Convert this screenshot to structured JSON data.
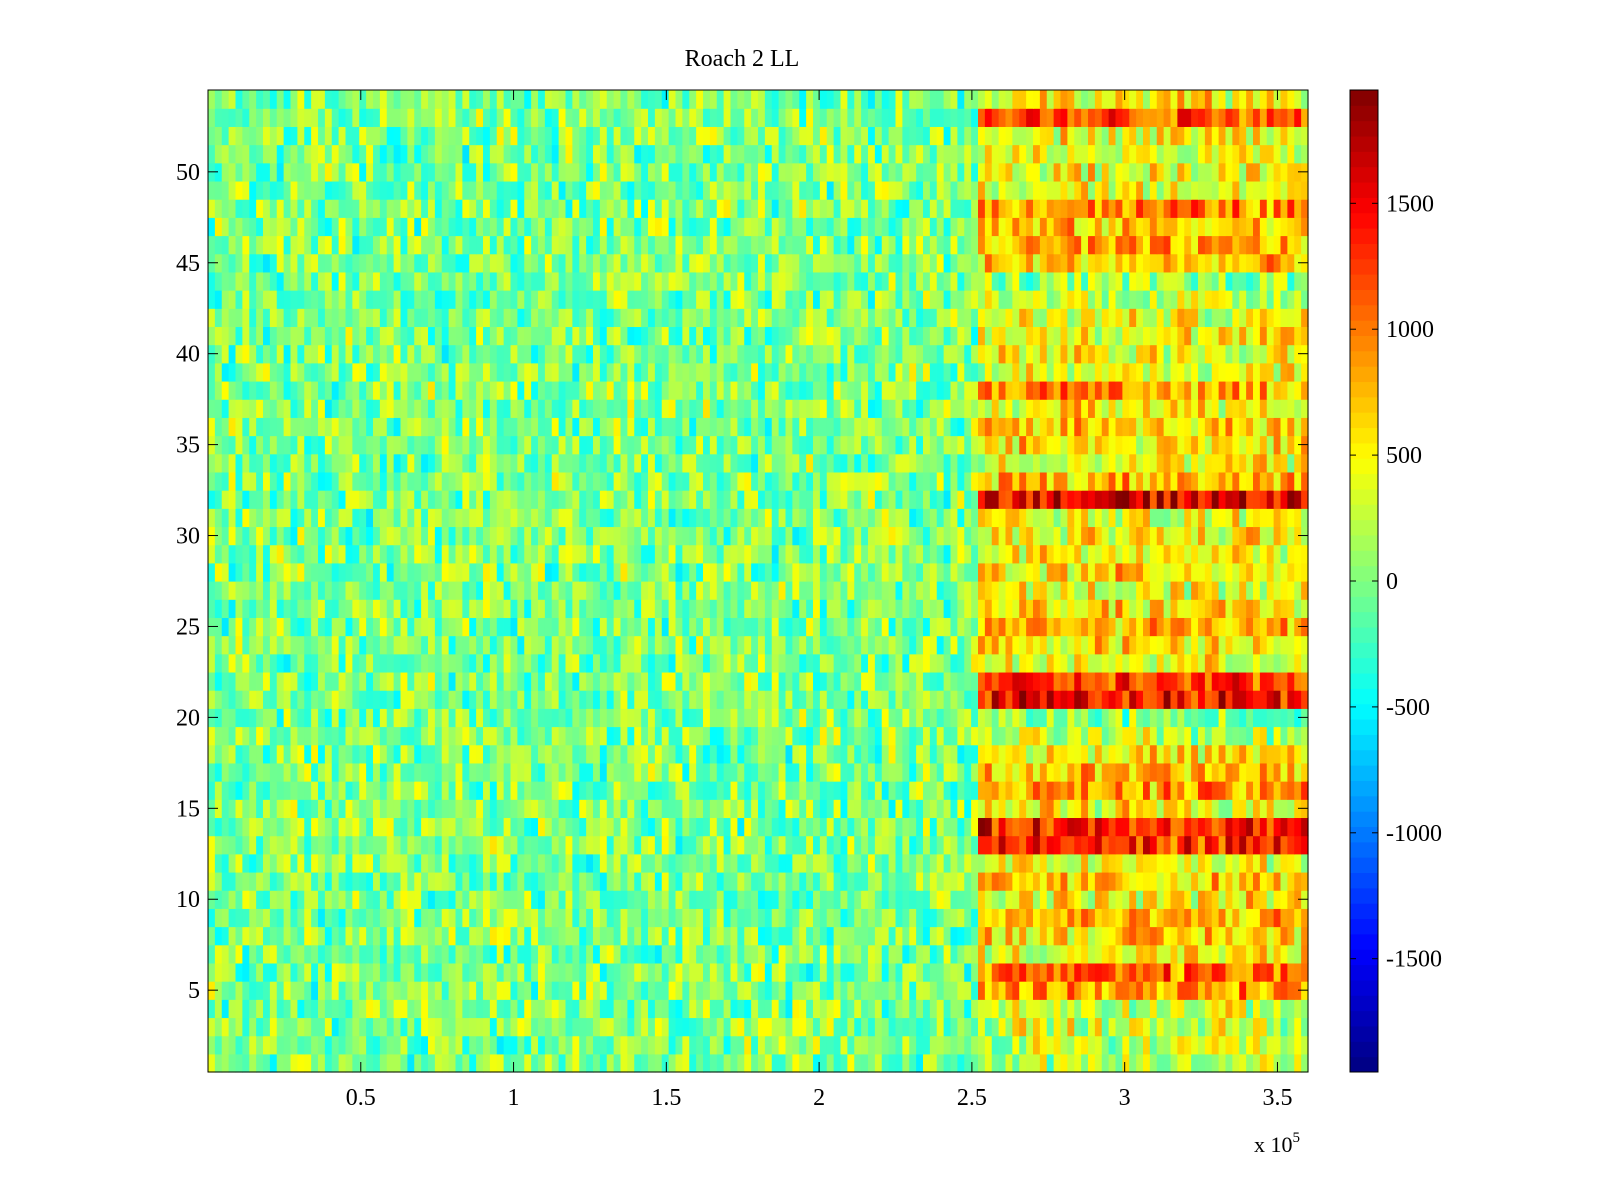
{
  "chart_data": {
    "type": "heatmap",
    "title": "Roach 2 LL",
    "xlabel": "",
    "ylabel": "",
    "x_exponent_label": "x 10",
    "x_exponent_power": "5",
    "xlim": [
      0,
      3.6
    ],
    "ylim": [
      0.5,
      54.5
    ],
    "x_ticks": [
      0.5,
      1,
      1.5,
      2,
      2.5,
      3,
      3.5
    ],
    "x_tick_labels": [
      "0.5",
      "1",
      "1.5",
      "2",
      "2.5",
      "3",
      "3.5"
    ],
    "y_ticks": [
      5,
      10,
      15,
      20,
      25,
      30,
      35,
      40,
      45,
      50
    ],
    "y_tick_labels": [
      "5",
      "10",
      "15",
      "20",
      "25",
      "30",
      "35",
      "40",
      "45",
      "50"
    ],
    "colormap": "jet",
    "clim": [
      -1950,
      1950
    ],
    "colorbar_ticks": [
      -1500,
      -1000,
      -500,
      0,
      500,
      1000,
      1500
    ],
    "colorbar_tick_labels": [
      "-1500",
      "-1000",
      "-500",
      "0",
      "500",
      "1000",
      "1500"
    ],
    "n_rows": 54,
    "transition_x": 2.5,
    "before_transition_mean": 0,
    "row_means_after_transition": [
      250,
      200,
      300,
      300,
      900,
      1050,
      450,
      650,
      750,
      500,
      650,
      400,
      1300,
      1400,
      450,
      850,
      700,
      550,
      200,
      0,
      1500,
      1200,
      400,
      600,
      800,
      550,
      450,
      600,
      450,
      500,
      400,
      1600,
      750,
      450,
      600,
      650,
      500,
      850,
      400,
      450,
      500,
      400,
      300,
      50,
      650,
      750,
      650,
      950,
      400,
      450,
      350,
      500,
      1200,
      500
    ]
  }
}
